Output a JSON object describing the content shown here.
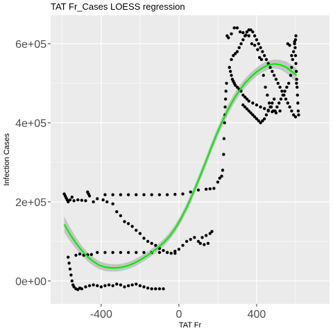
{
  "chart_data": {
    "type": "scatter",
    "title": "TAT Fr_Cases LOESS regression",
    "xlabel": "TAT Fr",
    "ylabel": "Infection Cases",
    "xlim": [
      -660,
      775
    ],
    "ylim": [
      -58000,
      672000
    ],
    "x_ticks": [
      -400,
      0,
      400
    ],
    "x_tick_labels": [
      "-400",
      "0",
      "400"
    ],
    "y_ticks": [
      0,
      200000,
      400000,
      600000
    ],
    "y_tick_labels": [
      "0e+00",
      "2e+05",
      "4e+05",
      "6e+05"
    ],
    "grid": true,
    "colors": {
      "panel": "#ebebeb",
      "grid": "#ffffff",
      "points": "#000000",
      "fit": "#00ee00",
      "band": "#bdbdbd"
    },
    "points": [
      [
        -590,
        220000
      ],
      [
        -585,
        215000
      ],
      [
        -580,
        210000
      ],
      [
        -575,
        205000
      ],
      [
        -570,
        200000
      ],
      [
        -560,
        205000
      ],
      [
        -550,
        212000
      ],
      [
        -540,
        203000
      ],
      [
        -520,
        205000
      ],
      [
        -500,
        204000
      ],
      [
        -480,
        203000
      ],
      [
        -470,
        225000
      ],
      [
        -465,
        220000
      ],
      [
        -460,
        215000
      ],
      [
        -440,
        200000
      ],
      [
        -420,
        208000
      ],
      [
        -390,
        205000
      ],
      [
        -370,
        200000
      ],
      [
        -340,
        195000
      ],
      [
        -320,
        175000
      ],
      [
        -300,
        165000
      ],
      [
        -280,
        150000
      ],
      [
        -260,
        145000
      ],
      [
        -240,
        138000
      ],
      [
        -220,
        128000
      ],
      [
        -200,
        120000
      ],
      [
        -180,
        108000
      ],
      [
        -160,
        100000
      ],
      [
        -140,
        95000
      ],
      [
        -120,
        90000
      ],
      [
        -100,
        82000
      ],
      [
        -80,
        77000
      ],
      [
        -60,
        72000
      ],
      [
        -40,
        70000
      ],
      [
        -20,
        70000
      ],
      [
        -380,
        218000
      ],
      [
        -340,
        218000
      ],
      [
        -300,
        218000
      ],
      [
        -260,
        218000
      ],
      [
        -220,
        218000
      ],
      [
        -180,
        218000
      ],
      [
        -140,
        218000
      ],
      [
        -100,
        218000
      ],
      [
        -60,
        218000
      ],
      [
        -20,
        219000
      ],
      [
        20,
        220000
      ],
      [
        60,
        225000
      ],
      [
        100,
        230000
      ],
      [
        140,
        232000
      ],
      [
        160,
        233000
      ],
      [
        180,
        234000
      ],
      [
        -570,
        60000
      ],
      [
        -565,
        45000
      ],
      [
        -560,
        30000
      ],
      [
        -555,
        15000
      ],
      [
        -550,
        0
      ],
      [
        -545,
        -10000
      ],
      [
        -540,
        -15000
      ],
      [
        -530,
        -20000
      ],
      [
        -520,
        -22000
      ],
      [
        -510,
        -18000
      ],
      [
        -500,
        -20000
      ],
      [
        -480,
        -15000
      ],
      [
        -460,
        -12000
      ],
      [
        -440,
        -10000
      ],
      [
        -420,
        -12000
      ],
      [
        -400,
        -15000
      ],
      [
        -380,
        -12000
      ],
      [
        -360,
        -10000
      ],
      [
        -340,
        -12000
      ],
      [
        -320,
        -8000
      ],
      [
        -300,
        -10000
      ],
      [
        -280,
        -15000
      ],
      [
        -260,
        -12000
      ],
      [
        -240,
        -10000
      ],
      [
        -220,
        -8000
      ],
      [
        -200,
        -12000
      ],
      [
        -180,
        -15000
      ],
      [
        -160,
        -18000
      ],
      [
        -140,
        -20000
      ],
      [
        -120,
        -20000
      ],
      [
        -100,
        -20000
      ],
      [
        -80,
        -20000
      ],
      [
        -530,
        65000
      ],
      [
        -510,
        68000
      ],
      [
        -490,
        65000
      ],
      [
        -470,
        66000
      ],
      [
        -450,
        67000
      ],
      [
        -420,
        72000
      ],
      [
        -380,
        72000
      ],
      [
        -340,
        72000
      ],
      [
        -300,
        72000
      ],
      [
        -260,
        72000
      ],
      [
        -220,
        72000
      ],
      [
        -180,
        72000
      ],
      [
        -140,
        72000
      ],
      [
        -100,
        72000
      ],
      [
        -60,
        72000
      ],
      [
        -20,
        75000
      ],
      [
        0,
        80000
      ],
      [
        20,
        90000
      ],
      [
        40,
        100000
      ],
      [
        60,
        105000
      ],
      [
        80,
        110000
      ],
      [
        100,
        100000
      ],
      [
        120,
        110000
      ],
      [
        140,
        115000
      ],
      [
        160,
        120000
      ],
      [
        170,
        125000
      ],
      [
        150,
        95000
      ],
      [
        130,
        92000
      ],
      [
        110,
        95000
      ],
      [
        200,
        250000
      ],
      [
        210,
        260000
      ],
      [
        220,
        265000
      ],
      [
        225,
        280000
      ],
      [
        230,
        320000
      ],
      [
        232,
        360000
      ],
      [
        235,
        400000
      ],
      [
        237,
        420000
      ],
      [
        238,
        440000
      ],
      [
        240,
        460000
      ],
      [
        242,
        480000
      ],
      [
        245,
        500000
      ],
      [
        248,
        620000
      ],
      [
        255,
        615000
      ],
      [
        270,
        625000
      ],
      [
        285,
        640000
      ],
      [
        300,
        640000
      ],
      [
        315,
        630000
      ],
      [
        330,
        628000
      ],
      [
        345,
        622000
      ],
      [
        360,
        620000
      ],
      [
        375,
        600000
      ],
      [
        390,
        596000
      ],
      [
        405,
        585000
      ],
      [
        415,
        565000
      ],
      [
        425,
        560000
      ],
      [
        435,
        520000
      ],
      [
        445,
        490000
      ],
      [
        455,
        470000
      ],
      [
        465,
        450000
      ],
      [
        475,
        440000
      ],
      [
        485,
        430000
      ],
      [
        495,
        430000
      ],
      [
        505,
        440000
      ],
      [
        515,
        450000
      ],
      [
        525,
        460000
      ],
      [
        535,
        470000
      ],
      [
        545,
        480000
      ],
      [
        555,
        490000
      ],
      [
        565,
        500000
      ],
      [
        575,
        520000
      ],
      [
        580,
        540000
      ],
      [
        585,
        560000
      ],
      [
        590,
        580000
      ],
      [
        595,
        600000
      ],
      [
        600,
        610000
      ],
      [
        602,
        620000
      ],
      [
        605,
        500000
      ],
      [
        560,
        600000
      ],
      [
        570,
        596000
      ],
      [
        580,
        570000
      ],
      [
        540,
        470000
      ],
      [
        520,
        430000
      ],
      [
        500,
        425000
      ],
      [
        480,
        428000
      ],
      [
        460,
        432000
      ],
      [
        440,
        436000
      ],
      [
        420,
        440000
      ],
      [
        400,
        445000
      ],
      [
        380,
        450000
      ],
      [
        360,
        455000
      ],
      [
        350,
        460000
      ],
      [
        340,
        465000
      ],
      [
        330,
        470000
      ],
      [
        320,
        480000
      ],
      [
        310,
        485000
      ],
      [
        300,
        490000
      ],
      [
        290,
        495000
      ],
      [
        285,
        500000
      ],
      [
        280,
        505000
      ],
      [
        275,
        510000
      ],
      [
        270,
        520000
      ],
      [
        265,
        530000
      ],
      [
        260,
        540000
      ],
      [
        270,
        560000
      ],
      [
        280,
        570000
      ],
      [
        290,
        575000
      ],
      [
        300,
        580000
      ],
      [
        310,
        590000
      ],
      [
        320,
        600000
      ],
      [
        330,
        610000
      ],
      [
        340,
        620000
      ],
      [
        350,
        630000
      ],
      [
        360,
        635000
      ],
      [
        370,
        635000
      ],
      [
        380,
        630000
      ],
      [
        390,
        620000
      ],
      [
        400,
        610000
      ],
      [
        410,
        600000
      ],
      [
        420,
        590000
      ],
      [
        430,
        580000
      ],
      [
        440,
        570000
      ],
      [
        450,
        560000
      ],
      [
        460,
        550000
      ],
      [
        470,
        540000
      ],
      [
        480,
        530000
      ],
      [
        490,
        520000
      ],
      [
        500,
        510000
      ],
      [
        510,
        500000
      ],
      [
        520,
        490000
      ],
      [
        530,
        480000
      ],
      [
        540,
        470000
      ],
      [
        550,
        460000
      ],
      [
        560,
        450000
      ],
      [
        570,
        440000
      ],
      [
        580,
        430000
      ],
      [
        590,
        420000
      ],
      [
        600,
        415000
      ],
      [
        595,
        605000
      ],
      [
        598,
        590000
      ],
      [
        600,
        570000
      ],
      [
        602,
        550000
      ],
      [
        604,
        530000
      ],
      [
        606,
        510000
      ],
      [
        608,
        490000
      ],
      [
        610,
        470000
      ],
      [
        612,
        450000
      ],
      [
        614,
        430000
      ],
      [
        616,
        420000
      ],
      [
        490,
        460000
      ],
      [
        480,
        450000
      ],
      [
        470,
        440000
      ],
      [
        460,
        430000
      ],
      [
        450,
        420000
      ],
      [
        440,
        410000
      ],
      [
        430,
        405000
      ],
      [
        420,
        400000
      ],
      [
        410,
        405000
      ],
      [
        400,
        410000
      ],
      [
        390,
        415000
      ],
      [
        380,
        420000
      ],
      [
        370,
        425000
      ],
      [
        360,
        430000
      ],
      [
        350,
        435000
      ],
      [
        340,
        440000
      ],
      [
        330,
        445000
      ]
    ],
    "fit_curve": [
      [
        -590,
        143000
      ],
      [
        -560,
        118000
      ],
      [
        -530,
        96000
      ],
      [
        -500,
        77000
      ],
      [
        -470,
        61000
      ],
      [
        -440,
        49000
      ],
      [
        -410,
        40000
      ],
      [
        -380,
        35000
      ],
      [
        -350,
        33000
      ],
      [
        -320,
        33000
      ],
      [
        -290,
        35000
      ],
      [
        -260,
        39000
      ],
      [
        -230,
        45000
      ],
      [
        -200,
        53000
      ],
      [
        -170,
        62000
      ],
      [
        -140,
        72000
      ],
      [
        -110,
        83000
      ],
      [
        -80,
        96000
      ],
      [
        -50,
        112000
      ],
      [
        -20,
        132000
      ],
      [
        10,
        157000
      ],
      [
        40,
        186000
      ],
      [
        70,
        219000
      ],
      [
        100,
        254000
      ],
      [
        130,
        291000
      ],
      [
        160,
        329000
      ],
      [
        190,
        366000
      ],
      [
        220,
        400000
      ],
      [
        250,
        431000
      ],
      [
        280,
        458000
      ],
      [
        310,
        481000
      ],
      [
        340,
        500000
      ],
      [
        370,
        516000
      ],
      [
        400,
        529000
      ],
      [
        430,
        539000
      ],
      [
        460,
        546000
      ],
      [
        490,
        549000
      ],
      [
        520,
        547000
      ],
      [
        550,
        541000
      ],
      [
        580,
        530000
      ],
      [
        605,
        520000
      ]
    ],
    "band_halfwidth": [
      [
        -590,
        20000
      ],
      [
        -500,
        12000
      ],
      [
        -400,
        10000
      ],
      [
        -300,
        9000
      ],
      [
        -200,
        9000
      ],
      [
        -100,
        9000
      ],
      [
        0,
        10000
      ],
      [
        100,
        11000
      ],
      [
        200,
        12000
      ],
      [
        300,
        12000
      ],
      [
        400,
        11000
      ],
      [
        500,
        11000
      ],
      [
        605,
        18000
      ]
    ]
  }
}
